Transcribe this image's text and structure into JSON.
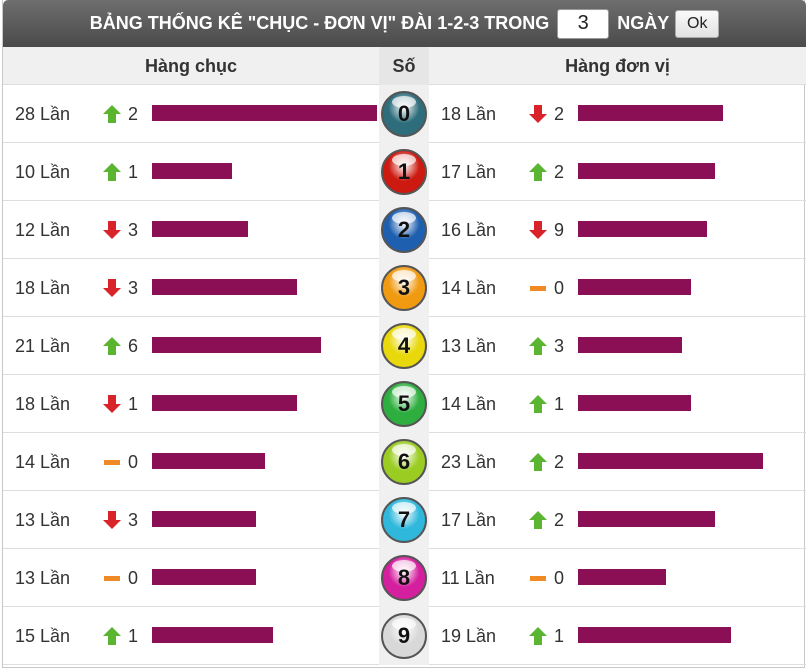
{
  "title": {
    "text": "BẢNG THỐNG KÊ \"CHỤC - ĐƠN VỊ\" ĐÀI 1-2-3 TRONG",
    "days_value": "3",
    "days_label": "NGÀY",
    "ok_label": "Ok"
  },
  "headers": {
    "chuc": "Hàng chục",
    "so": "Số",
    "donvi": "Hàng đơn vị"
  },
  "colors": {
    "bar": "#8b0f54",
    "up": "#5cb531",
    "down": "#d9232a",
    "flat": "#f08a24"
  },
  "rows": [
    {
      "digit": "0",
      "ball_color": "#2e6d7b",
      "chuc": {
        "count": "28 Lần",
        "trend": "up",
        "delta": "2",
        "value": 28
      },
      "donvi": {
        "count": "18 Lần",
        "trend": "down",
        "delta": "2",
        "value": 18
      }
    },
    {
      "digit": "1",
      "ball_color": "#cc1a10",
      "chuc": {
        "count": "10 Lần",
        "trend": "up",
        "delta": "1",
        "value": 10
      },
      "donvi": {
        "count": "17 Lần",
        "trend": "up",
        "delta": "2",
        "value": 17
      }
    },
    {
      "digit": "2",
      "ball_color": "#1f5fb0",
      "chuc": {
        "count": "12 Lần",
        "trend": "down",
        "delta": "3",
        "value": 12
      },
      "donvi": {
        "count": "16 Lần",
        "trend": "down",
        "delta": "9",
        "value": 16
      }
    },
    {
      "digit": "3",
      "ball_color": "#f09a12",
      "chuc": {
        "count": "18 Lần",
        "trend": "down",
        "delta": "3",
        "value": 18
      },
      "donvi": {
        "count": "14 Lần",
        "trend": "flat",
        "delta": "0",
        "value": 14
      }
    },
    {
      "digit": "4",
      "ball_color": "#e8d80c",
      "chuc": {
        "count": "21 Lần",
        "trend": "up",
        "delta": "6",
        "value": 21
      },
      "donvi": {
        "count": "13 Lần",
        "trend": "up",
        "delta": "3",
        "value": 13
      }
    },
    {
      "digit": "5",
      "ball_color": "#2dae3e",
      "chuc": {
        "count": "18 Lần",
        "trend": "down",
        "delta": "1",
        "value": 18
      },
      "donvi": {
        "count": "14 Lần",
        "trend": "up",
        "delta": "1",
        "value": 14
      }
    },
    {
      "digit": "6",
      "ball_color": "#9acc22",
      "chuc": {
        "count": "14 Lần",
        "trend": "flat",
        "delta": "0",
        "value": 14
      },
      "donvi": {
        "count": "23 Lần",
        "trend": "up",
        "delta": "2",
        "value": 23
      }
    },
    {
      "digit": "7",
      "ball_color": "#2fb8dc",
      "chuc": {
        "count": "13 Lần",
        "trend": "down",
        "delta": "3",
        "value": 13
      },
      "donvi": {
        "count": "17 Lần",
        "trend": "up",
        "delta": "2",
        "value": 17
      }
    },
    {
      "digit": "8",
      "ball_color": "#d41f9e",
      "chuc": {
        "count": "13 Lần",
        "trend": "flat",
        "delta": "0",
        "value": 13
      },
      "donvi": {
        "count": "11 Lần",
        "trend": "flat",
        "delta": "0",
        "value": 11
      }
    },
    {
      "digit": "9",
      "ball_color": "#d8d8d8",
      "chuc": {
        "count": "15 Lần",
        "trend": "up",
        "delta": "1",
        "value": 15
      },
      "donvi": {
        "count": "19 Lần",
        "trend": "up",
        "delta": "1",
        "value": 19
      }
    }
  ]
}
